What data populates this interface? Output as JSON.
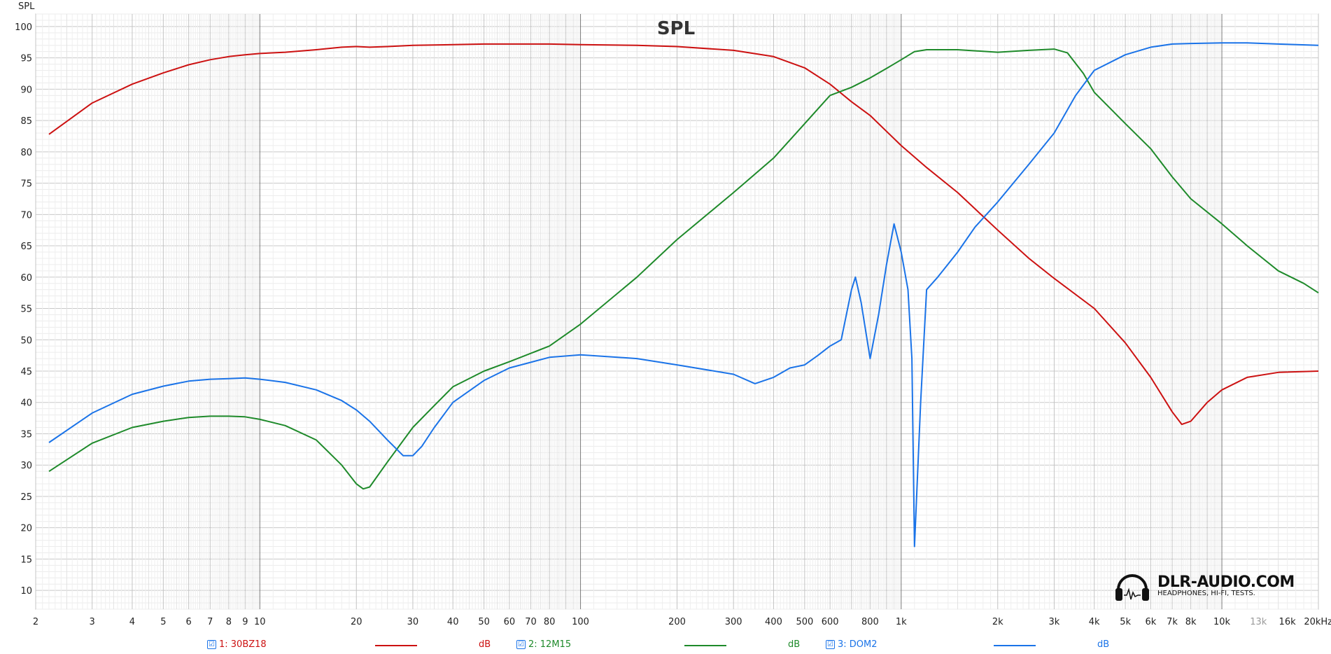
{
  "chart_data": {
    "type": "line",
    "title": "SPL",
    "ylabel": "SPL",
    "xlabel": "",
    "x_scale": "log",
    "xlim": [
      2,
      20000
    ],
    "ylim": [
      7,
      102
    ],
    "y_ticks": [
      10,
      15,
      20,
      25,
      30,
      35,
      40,
      45,
      50,
      55,
      60,
      65,
      70,
      75,
      80,
      85,
      90,
      95,
      100
    ],
    "x_ticks": [
      {
        "value": 2,
        "label": "2"
      },
      {
        "value": 3,
        "label": "3"
      },
      {
        "value": 4,
        "label": "4"
      },
      {
        "value": 5,
        "label": "5"
      },
      {
        "value": 6,
        "label": "6"
      },
      {
        "value": 7,
        "label": "7"
      },
      {
        "value": 8,
        "label": "8"
      },
      {
        "value": 9,
        "label": "9"
      },
      {
        "value": 10,
        "label": "10"
      },
      {
        "value": 20,
        "label": "20"
      },
      {
        "value": 30,
        "label": "30"
      },
      {
        "value": 40,
        "label": "40"
      },
      {
        "value": 50,
        "label": "50"
      },
      {
        "value": 60,
        "label": "60"
      },
      {
        "value": 70,
        "label": "70"
      },
      {
        "value": 80,
        "label": "80"
      },
      {
        "value": 100,
        "label": "100"
      },
      {
        "value": 200,
        "label": "200"
      },
      {
        "value": 300,
        "label": "300"
      },
      {
        "value": 400,
        "label": "400"
      },
      {
        "value": 500,
        "label": "500"
      },
      {
        "value": 600,
        "label": "600"
      },
      {
        "value": 800,
        "label": "800"
      },
      {
        "value": 1000,
        "label": "1k"
      },
      {
        "value": 2000,
        "label": "2k"
      },
      {
        "value": 3000,
        "label": "3k"
      },
      {
        "value": 4000,
        "label": "4k"
      },
      {
        "value": 5000,
        "label": "5k"
      },
      {
        "value": 6000,
        "label": "6k"
      },
      {
        "value": 7000,
        "label": "7k"
      },
      {
        "value": 8000,
        "label": "8k"
      },
      {
        "value": 10000,
        "label": "10k"
      },
      {
        "value": 13000,
        "label": "13k",
        "faint": true
      },
      {
        "value": 16000,
        "label": "16k"
      },
      {
        "value": 20000,
        "label": "20kHz"
      }
    ],
    "grid": true,
    "series": [
      {
        "name": "1: 30BZ18",
        "unit": "dB",
        "color": "#cc1111",
        "points": [
          [
            2.2,
            82.8
          ],
          [
            3,
            87.8
          ],
          [
            4,
            90.8
          ],
          [
            5,
            92.6
          ],
          [
            6,
            93.9
          ],
          [
            7,
            94.7
          ],
          [
            8,
            95.2
          ],
          [
            9,
            95.5
          ],
          [
            10,
            95.7
          ],
          [
            12,
            95.9
          ],
          [
            15,
            96.3
          ],
          [
            18,
            96.7
          ],
          [
            20,
            96.8
          ],
          [
            22,
            96.7
          ],
          [
            25,
            96.8
          ],
          [
            30,
            97.0
          ],
          [
            40,
            97.1
          ],
          [
            50,
            97.2
          ],
          [
            60,
            97.2
          ],
          [
            80,
            97.2
          ],
          [
            100,
            97.1
          ],
          [
            150,
            97.0
          ],
          [
            200,
            96.8
          ],
          [
            300,
            96.2
          ],
          [
            400,
            95.2
          ],
          [
            500,
            93.4
          ],
          [
            600,
            90.8
          ],
          [
            700,
            88.0
          ],
          [
            800,
            85.8
          ],
          [
            1000,
            81.0
          ],
          [
            1200,
            77.5
          ],
          [
            1500,
            73.5
          ],
          [
            2000,
            67.5
          ],
          [
            2500,
            63.0
          ],
          [
            3000,
            59.8
          ],
          [
            4000,
            55.0
          ],
          [
            5000,
            49.5
          ],
          [
            6000,
            44.0
          ],
          [
            7000,
            38.5
          ],
          [
            7500,
            36.5
          ],
          [
            8000,
            37.0
          ],
          [
            9000,
            40.0
          ],
          [
            10000,
            42.0
          ],
          [
            12000,
            44.0
          ],
          [
            15000,
            44.8
          ],
          [
            20000,
            45.0
          ]
        ]
      },
      {
        "name": "2: 12M15",
        "unit": "dB",
        "color": "#1e8a2a",
        "points": [
          [
            2.2,
            29.0
          ],
          [
            3,
            33.5
          ],
          [
            4,
            36.0
          ],
          [
            5,
            37.0
          ],
          [
            6,
            37.6
          ],
          [
            7,
            37.8
          ],
          [
            8,
            37.8
          ],
          [
            9,
            37.7
          ],
          [
            10,
            37.3
          ],
          [
            12,
            36.3
          ],
          [
            15,
            34.0
          ],
          [
            18,
            30.0
          ],
          [
            20,
            27.0
          ],
          [
            21,
            26.2
          ],
          [
            22,
            26.5
          ],
          [
            25,
            30.5
          ],
          [
            30,
            36.0
          ],
          [
            35,
            39.5
          ],
          [
            40,
            42.5
          ],
          [
            50,
            45.0
          ],
          [
            60,
            46.5
          ],
          [
            80,
            49.0
          ],
          [
            100,
            52.5
          ],
          [
            150,
            60.0
          ],
          [
            200,
            66.0
          ],
          [
            300,
            73.5
          ],
          [
            400,
            79.0
          ],
          [
            500,
            84.5
          ],
          [
            600,
            89.0
          ],
          [
            700,
            90.3
          ],
          [
            800,
            91.8
          ],
          [
            900,
            93.3
          ],
          [
            1000,
            94.7
          ],
          [
            1100,
            96.0
          ],
          [
            1200,
            96.3
          ],
          [
            1500,
            96.3
          ],
          [
            2000,
            95.9
          ],
          [
            2500,
            96.2
          ],
          [
            3000,
            96.4
          ],
          [
            3300,
            95.8
          ],
          [
            3700,
            92.5
          ],
          [
            4000,
            89.5
          ],
          [
            5000,
            84.5
          ],
          [
            6000,
            80.5
          ],
          [
            7000,
            76.0
          ],
          [
            8000,
            72.5
          ],
          [
            10000,
            68.5
          ],
          [
            12000,
            65.0
          ],
          [
            15000,
            61.0
          ],
          [
            18000,
            59.0
          ],
          [
            20000,
            57.5
          ]
        ]
      },
      {
        "name": "3: DOM2",
        "unit": "dB",
        "color": "#1a73e8",
        "points": [
          [
            2.2,
            33.6
          ],
          [
            3,
            38.3
          ],
          [
            4,
            41.3
          ],
          [
            5,
            42.6
          ],
          [
            6,
            43.4
          ],
          [
            7,
            43.7
          ],
          [
            8,
            43.8
          ],
          [
            9,
            43.9
          ],
          [
            10,
            43.7
          ],
          [
            12,
            43.2
          ],
          [
            15,
            42.0
          ],
          [
            18,
            40.3
          ],
          [
            20,
            38.8
          ],
          [
            22,
            37.0
          ],
          [
            25,
            34.0
          ],
          [
            28,
            31.5
          ],
          [
            30,
            31.5
          ],
          [
            32,
            33.0
          ],
          [
            35,
            36.0
          ],
          [
            40,
            40.0
          ],
          [
            50,
            43.5
          ],
          [
            60,
            45.5
          ],
          [
            80,
            47.2
          ],
          [
            100,
            47.6
          ],
          [
            150,
            47.0
          ],
          [
            200,
            46.0
          ],
          [
            300,
            44.5
          ],
          [
            350,
            43.0
          ],
          [
            400,
            44.0
          ],
          [
            450,
            45.5
          ],
          [
            500,
            46.0
          ],
          [
            550,
            47.5
          ],
          [
            600,
            49.0
          ],
          [
            650,
            50.0
          ],
          [
            700,
            58.0
          ],
          [
            720,
            60.0
          ],
          [
            750,
            56.0
          ],
          [
            800,
            47.0
          ],
          [
            850,
            54.0
          ],
          [
            900,
            62.0
          ],
          [
            950,
            68.5
          ],
          [
            1000,
            64.0
          ],
          [
            1050,
            58.0
          ],
          [
            1080,
            47.0
          ],
          [
            1100,
            17.0
          ],
          [
            1150,
            40.0
          ],
          [
            1200,
            58.0
          ],
          [
            1300,
            60.0
          ],
          [
            1500,
            64.0
          ],
          [
            1700,
            68.0
          ],
          [
            2000,
            72.0
          ],
          [
            2500,
            78.0
          ],
          [
            3000,
            83.0
          ],
          [
            3500,
            89.0
          ],
          [
            4000,
            93.0
          ],
          [
            5000,
            95.5
          ],
          [
            6000,
            96.7
          ],
          [
            7000,
            97.2
          ],
          [
            8000,
            97.3
          ],
          [
            10000,
            97.4
          ],
          [
            12000,
            97.4
          ],
          [
            15000,
            97.2
          ],
          [
            20000,
            97.0
          ]
        ]
      }
    ]
  },
  "legend": [
    {
      "label": "1: 30BZ18",
      "unit": "dB",
      "color": "#cc1111"
    },
    {
      "label": "2: 12M15",
      "unit": "dB",
      "color": "#1e8a2a"
    },
    {
      "label": "3: DOM2",
      "unit": "dB",
      "color": "#1a73e8"
    }
  ],
  "legend_check": "☑",
  "watermark": {
    "name": "DLR-AUDIO.COM",
    "tagline": "HEADPHONES, HI-FI, TESTS."
  }
}
